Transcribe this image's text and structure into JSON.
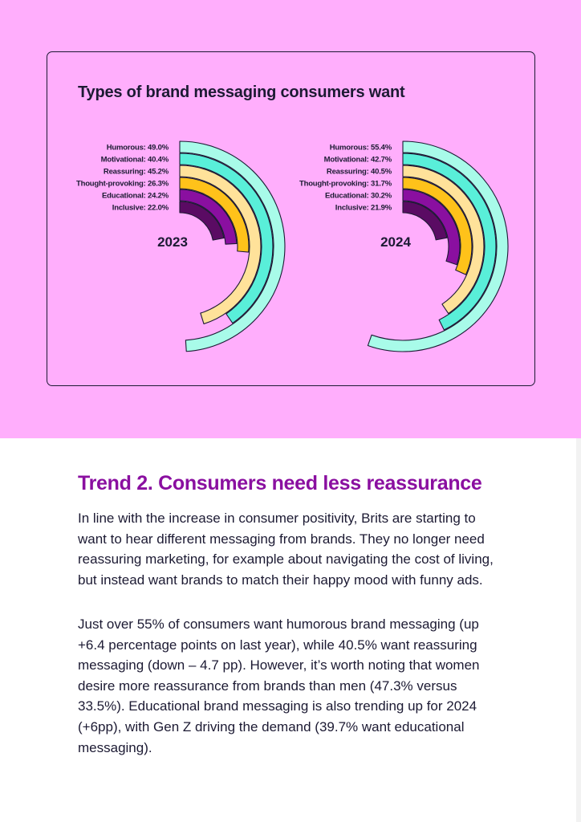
{
  "chart_data": {
    "type": "radial-bar",
    "title": "Types of brand messaging consumers want",
    "charts": [
      {
        "name": "2023",
        "items": [
          {
            "label": "Humorous: 49.0%",
            "category": "Humorous",
            "value": 49.0
          },
          {
            "label": "Motivational: 40.4%",
            "category": "Motivational",
            "value": 40.4
          },
          {
            "label": "Reassuring: 45.2%",
            "category": "Reassuring",
            "value": 45.2
          },
          {
            "label": "Thought-provoking: 26.3%",
            "category": "Thought-provoking",
            "value": 26.3
          },
          {
            "label": "Educational: 24.2%",
            "category": "Educational",
            "value": 24.2
          },
          {
            "label": "Inclusive: 22.0%",
            "category": "Inclusive",
            "value": 22.0
          }
        ]
      },
      {
        "name": "2024",
        "items": [
          {
            "label": "Humorous: 55.4%",
            "category": "Humorous",
            "value": 55.4
          },
          {
            "label": "Motivational: 42.7%",
            "category": "Motivational",
            "value": 42.7
          },
          {
            "label": "Reassuring: 40.5%",
            "category": "Reassuring",
            "value": 40.5
          },
          {
            "label": "Thought-provoking: 31.7%",
            "category": "Thought-provoking",
            "value": 31.7
          },
          {
            "label": "Educational: 30.2%",
            "category": "Educational",
            "value": 30.2
          },
          {
            "label": "Inclusive: 21.9%",
            "category": "Inclusive",
            "value": 21.9
          }
        ]
      }
    ],
    "colors": [
      "#a8fbe9",
      "#59efd9",
      "#ffe29a",
      "#ffc21a",
      "#8a0fa0",
      "#5a0b63"
    ],
    "outline_color": "#1c1a33",
    "legend": "none",
    "grid": false
  },
  "article": {
    "heading": "Trend 2. Consumers need less reassurance",
    "paragraphs": [
      "In line with the increase in consumer positivity, Brits are starting to want to hear different messaging from brands. They no longer need reassuring marketing, for example about navigating the cost of living, but instead want brands to match their happy mood with funny ads.",
      "Just over 55% of consumers want humorous brand messaging (up +6.4 percentage points on last year), while 40.5% want reassuring messaging (down – 4.7 pp). However, it’s worth noting that women desire more reassurance from brands than men (47.3% versus 33.5%). Educational brand messaging is also trending up for 2024 (+6pp), with Gen Z driving the demand (39.7% want educational messaging)."
    ]
  }
}
